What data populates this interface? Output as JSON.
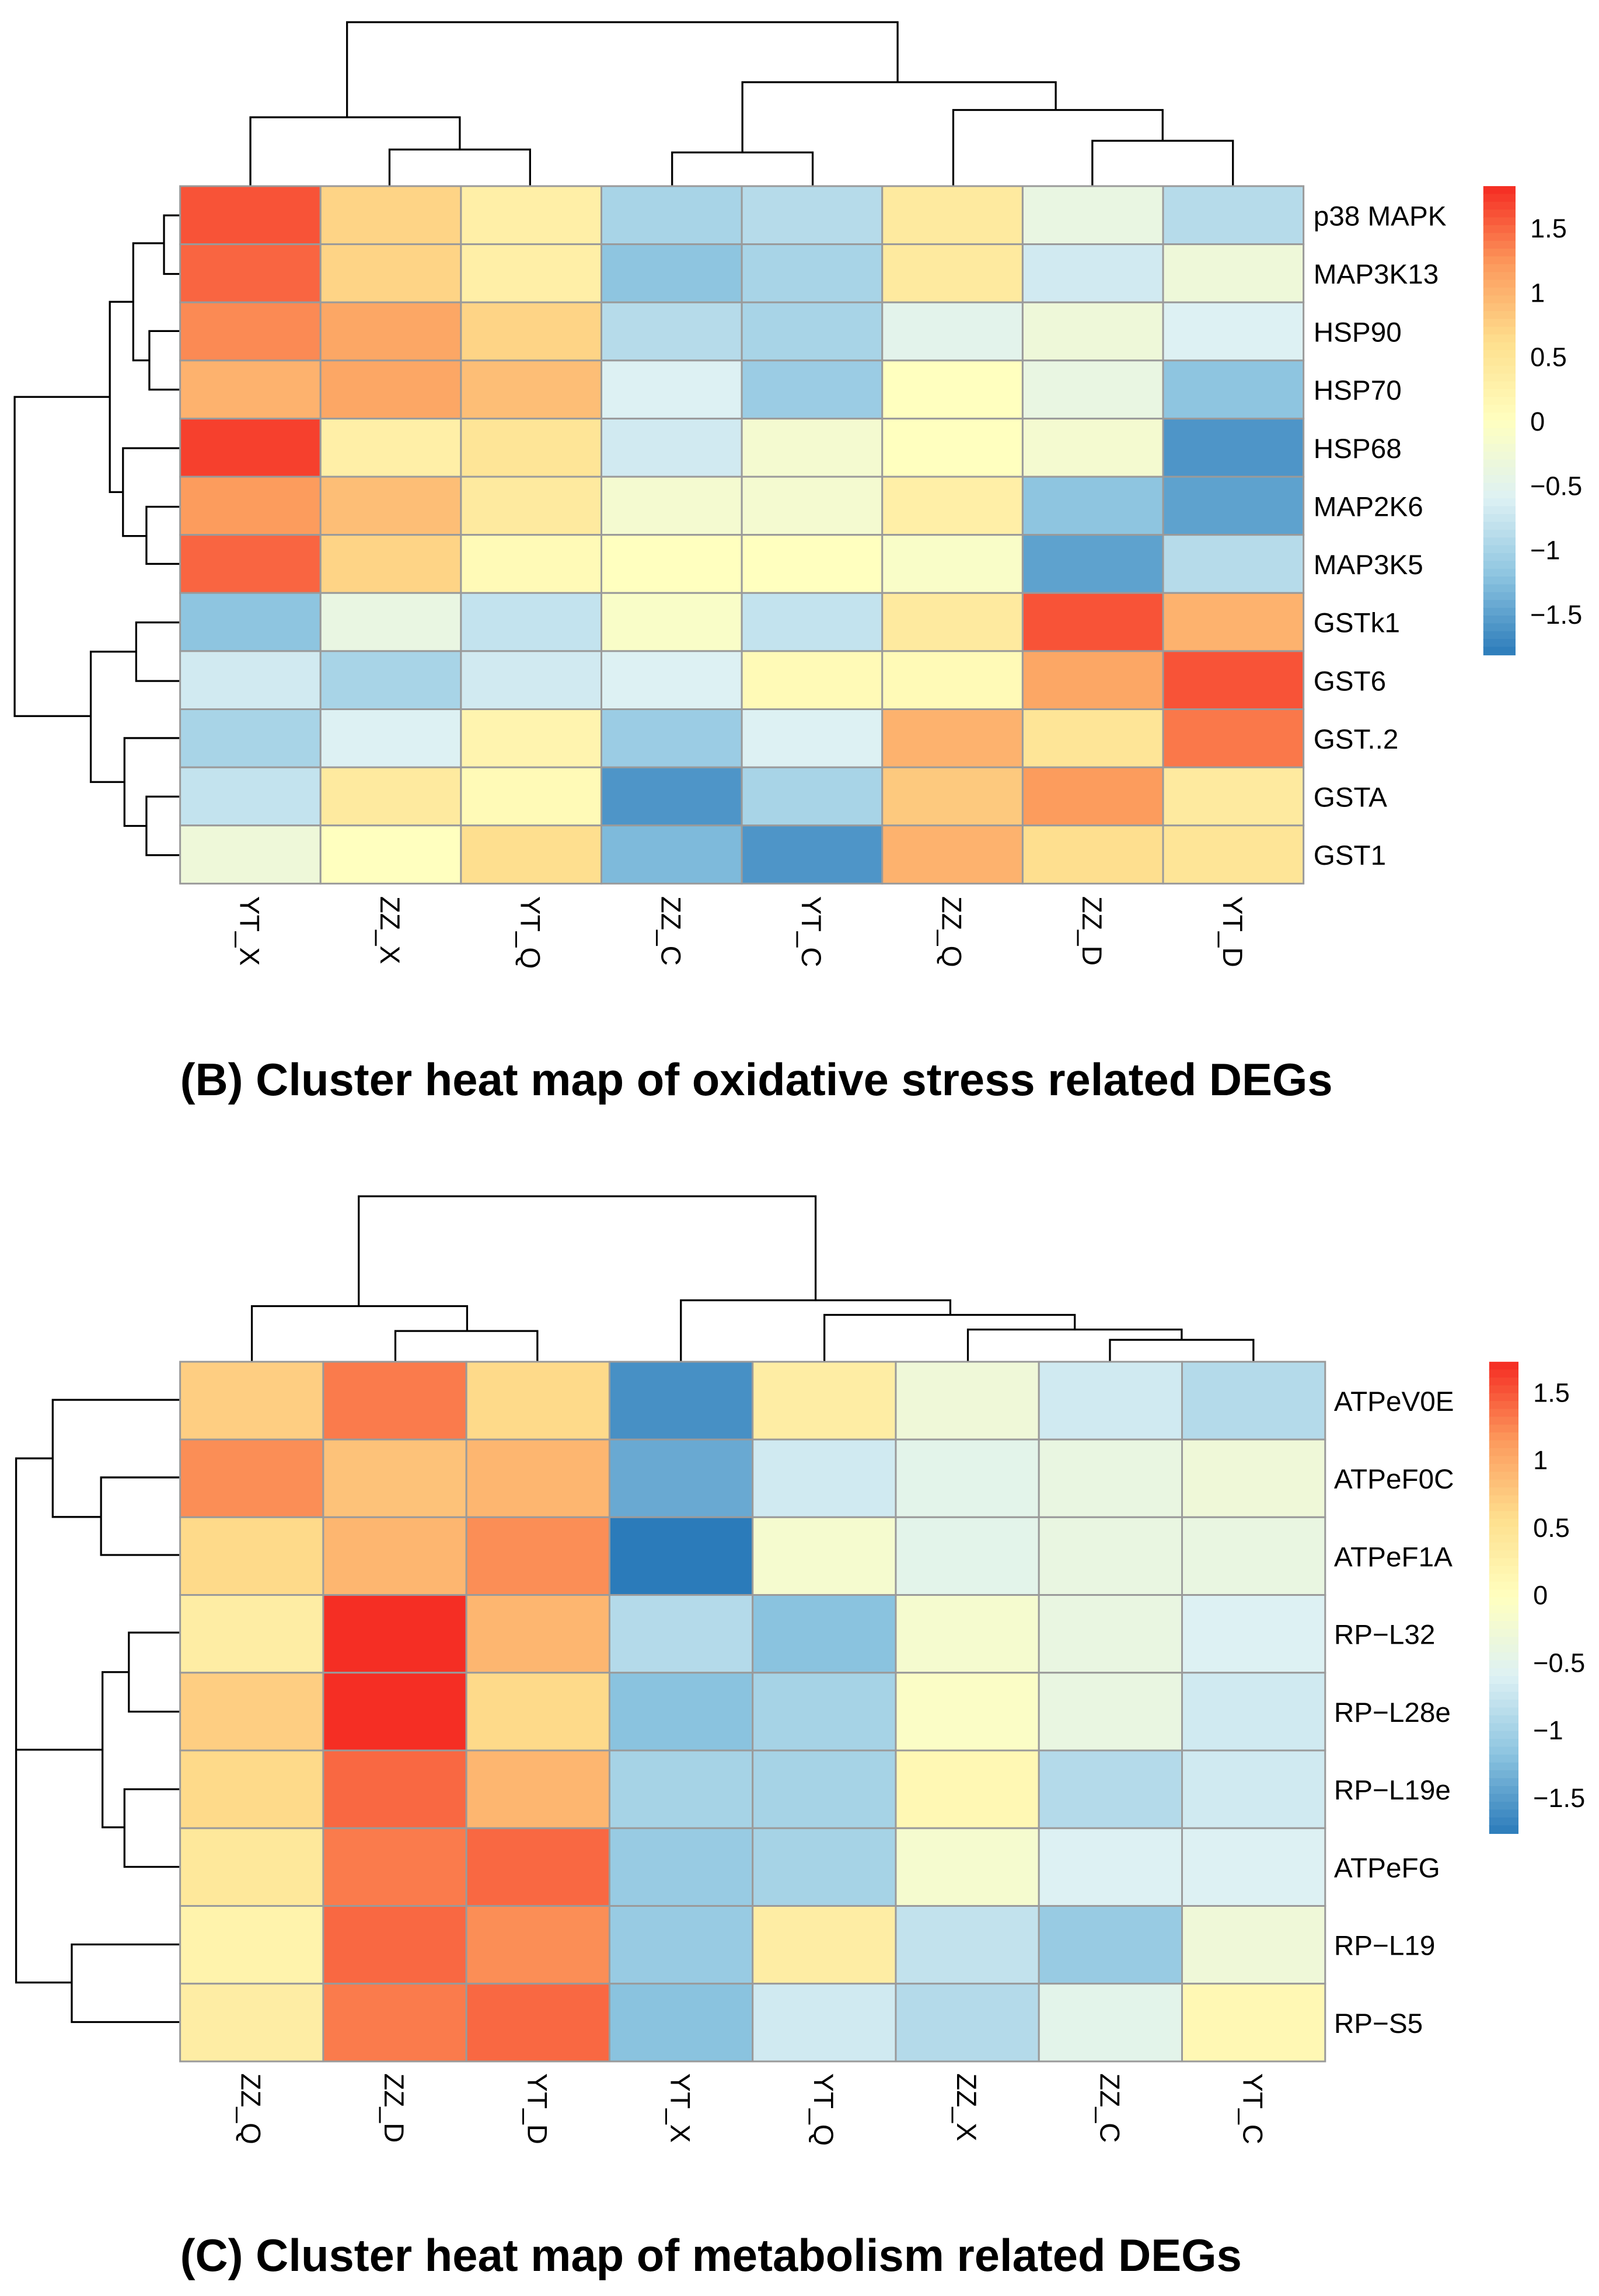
{
  "chart_data": [
    {
      "type": "heatmap",
      "title": "(B)  Cluster heat map of oxidative stress related DEGs",
      "columns": [
        "YT_X",
        "ZZ_X",
        "YT_Q",
        "ZZ_C",
        "YT_C",
        "ZZ_Q",
        "ZZ_D",
        "YT_D"
      ],
      "rows": [
        "p38 MAPK",
        "MAP3K13",
        "HSP90",
        "HSP70",
        "HSP68",
        "MAP2K6",
        "MAP3K5",
        "GSTk1",
        "GST6",
        "GST..2",
        "GSTA",
        "GST1"
      ],
      "values": [
        [
          1.6,
          0.7,
          0.3,
          -1.0,
          -0.9,
          0.4,
          -0.4,
          -0.9
        ],
        [
          1.5,
          0.7,
          0.3,
          -1.2,
          -1.0,
          0.4,
          -0.7,
          -0.3
        ],
        [
          1.3,
          1.1,
          0.7,
          -0.9,
          -1.0,
          -0.5,
          -0.3,
          -0.6
        ],
        [
          1.0,
          1.1,
          0.9,
          -0.6,
          -1.1,
          0.0,
          -0.4,
          -1.2
        ],
        [
          1.7,
          0.3,
          0.5,
          -0.7,
          -0.2,
          0.0,
          -0.2,
          -1.6
        ],
        [
          1.2,
          0.9,
          0.4,
          -0.2,
          -0.2,
          0.3,
          -1.2,
          -1.5
        ],
        [
          1.5,
          0.7,
          0.1,
          0.0,
          0.0,
          -0.1,
          -1.5,
          -0.9
        ],
        [
          -1.2,
          -0.4,
          -0.8,
          -0.1,
          -0.8,
          0.4,
          1.6,
          1.0
        ],
        [
          -0.7,
          -1.0,
          -0.7,
          -0.6,
          0.1,
          0.1,
          1.1,
          1.6
        ],
        [
          -1.0,
          -0.6,
          0.2,
          -1.1,
          -0.6,
          1.0,
          0.5,
          1.4
        ],
        [
          -0.8,
          0.4,
          0.1,
          -1.6,
          -1.0,
          0.8,
          1.2,
          0.4
        ],
        [
          -0.3,
          0.0,
          0.6,
          -1.3,
          -1.6,
          1.0,
          0.6,
          0.5
        ]
      ],
      "color_range": [
        -1.82,
        1.82
      ],
      "legend_ticks": [
        "1.5",
        "1",
        "0.5",
        "0",
        "−0.5",
        "−1",
        "−1.5"
      ],
      "legend_tick_values": [
        1.5,
        1,
        0.5,
        0,
        -0.5,
        -1,
        -1.5
      ],
      "legend_placement": "right"
    },
    {
      "type": "heatmap",
      "title": "(C)  Cluster heat map of metabolism related DEGs",
      "columns": [
        "ZZ_Q",
        "ZZ_D",
        "YT_D",
        "YT_X",
        "YT_Q",
        "ZZ_X",
        "ZZ_C",
        "YT_C"
      ],
      "rows": [
        "ATPeV0E",
        "ATPeF0C",
        "ATPeF1A",
        "RP−L32",
        "RP−L28e",
        "RP−L19e",
        "ATPeFG",
        "RP−L19",
        "RP−S5"
      ],
      "values": [
        [
          0.7,
          1.3,
          0.6,
          -1.6,
          0.3,
          -0.3,
          -0.7,
          -0.9
        ],
        [
          1.2,
          0.8,
          0.9,
          -1.4,
          -0.7,
          -0.5,
          -0.4,
          -0.3
        ],
        [
          0.6,
          0.9,
          1.2,
          -1.8,
          -0.2,
          -0.5,
          -0.4,
          -0.4
        ],
        [
          0.3,
          1.7,
          0.9,
          -0.9,
          -1.2,
          -0.2,
          -0.4,
          -0.6
        ],
        [
          0.7,
          1.7,
          0.6,
          -1.2,
          -1.0,
          -0.1,
          -0.4,
          -0.7
        ],
        [
          0.6,
          1.4,
          0.9,
          -1.0,
          -1.0,
          0.1,
          -0.9,
          -0.7
        ],
        [
          0.4,
          1.3,
          1.4,
          -1.1,
          -1.0,
          -0.2,
          -0.6,
          -0.6
        ],
        [
          0.2,
          1.4,
          1.2,
          -1.1,
          0.3,
          -0.8,
          -1.1,
          -0.3
        ],
        [
          0.3,
          1.3,
          1.4,
          -1.2,
          -0.7,
          -0.9,
          -0.5,
          0.1
        ]
      ],
      "color_range": [
        -1.77,
        1.72
      ],
      "legend_ticks": [
        "1.5",
        "1",
        "0.5",
        "0",
        "−0.5",
        "−1",
        "−1.5"
      ],
      "legend_tick_values": [
        1.5,
        1,
        0.5,
        0,
        -0.5,
        -1,
        -1.5
      ],
      "legend_placement": "right"
    }
  ],
  "palette": [
    "#2B7BBA",
    "#8CC4E0",
    "#DDF1F4",
    "#FFFFBF",
    "#FEDF8E",
    "#FC9A5C",
    "#F52A22"
  ]
}
